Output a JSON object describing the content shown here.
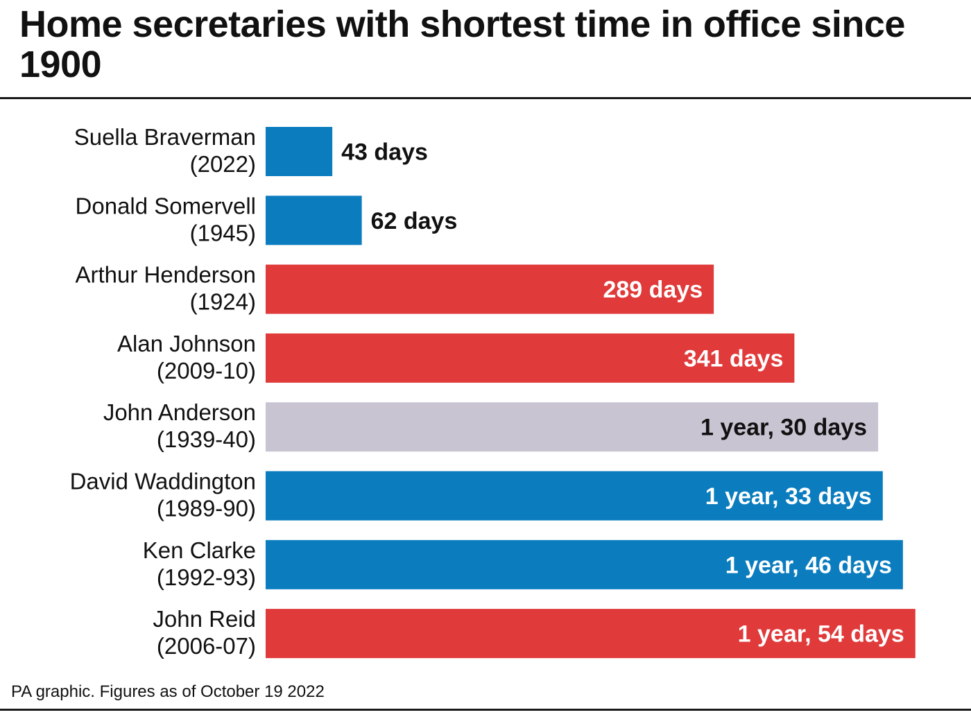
{
  "title": "Home secretaries with shortest time in office since 1900",
  "footer": "PA graphic. Figures as of October 19 2022",
  "colors": {
    "conservative": "#0b7dbf",
    "labour": "#e03a3a",
    "national": "#c8c4d2",
    "rule": "#1a1a1a"
  },
  "chart_data": {
    "type": "bar",
    "orientation": "horizontal",
    "unit": "days",
    "categories": [
      [
        "Suella Braverman",
        "(2022)"
      ],
      [
        "Donald Somervell",
        "(1945)"
      ],
      [
        "Arthur Henderson",
        "(1924)"
      ],
      [
        "Alan Johnson",
        "(2009-10)"
      ],
      [
        "John Anderson",
        "(1939-40)"
      ],
      [
        "David Waddington",
        "(1989-90)"
      ],
      [
        "Ken Clarke",
        "(1992-93)"
      ],
      [
        "John Reid",
        "(2006-07)"
      ]
    ],
    "values": [
      43,
      62,
      289,
      341,
      395,
      398,
      411,
      419
    ],
    "value_labels": [
      "43 days",
      "62 days",
      "289 days",
      "341 days",
      "1 year, 30 days",
      "1 year, 33 days",
      "1 year, 46 days",
      "1 year, 54 days"
    ],
    "bar_colors": [
      "#0b7dbf",
      "#0b7dbf",
      "#e03a3a",
      "#e03a3a",
      "#c8c4d2",
      "#0b7dbf",
      "#0b7dbf",
      "#e03a3a"
    ],
    "label_colors": [
      "#111111",
      "#111111",
      "#ffffff",
      "#ffffff",
      "#111111",
      "#ffffff",
      "#ffffff",
      "#ffffff"
    ],
    "label_positions": [
      "outside",
      "outside",
      "inside",
      "inside",
      "inside",
      "inside",
      "inside",
      "inside"
    ],
    "xlim": [
      0,
      420
    ],
    "grid": false,
    "legend": "none"
  }
}
